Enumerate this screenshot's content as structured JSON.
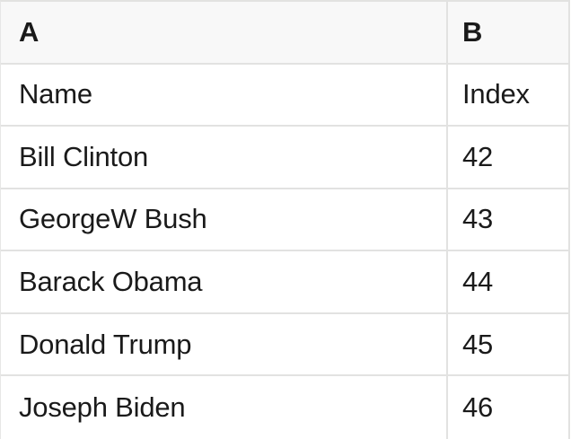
{
  "table": {
    "column_headers": [
      "A",
      "B"
    ],
    "field_row": {
      "a": "Name",
      "b": "Index"
    },
    "rows": [
      {
        "a": "Bill Clinton",
        "b": 42
      },
      {
        "a": "GeorgeW Bush",
        "b": 43
      },
      {
        "a": "Barack Obama",
        "b": 44
      },
      {
        "a": "Donald Trump",
        "b": 45
      },
      {
        "a": "Joseph Biden",
        "b": 46
      }
    ],
    "colors": {
      "header_background": "#f8f8f8",
      "cell_background": "#ffffff",
      "border": "#e2e2e1",
      "text": "#1a1a1a"
    }
  }
}
